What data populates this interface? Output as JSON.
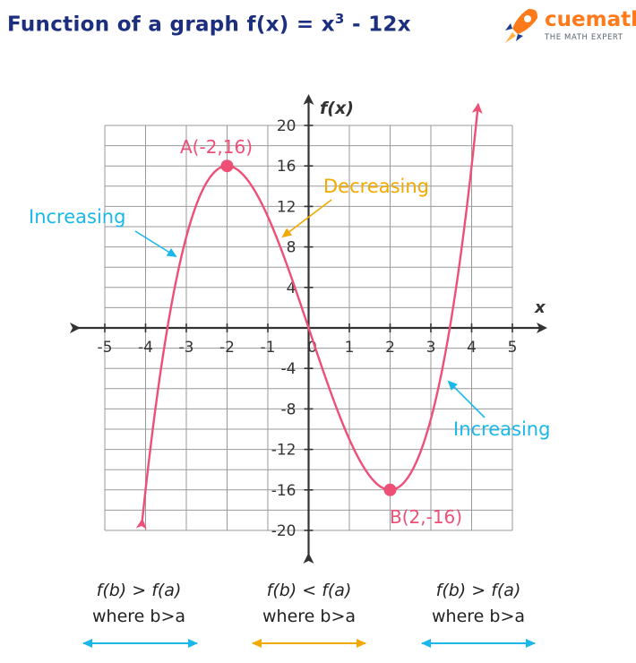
{
  "title": {
    "prefix": "Function of a graph f(x) =  x",
    "sup": "3",
    "suffix": " - 12x"
  },
  "logo": {
    "brand": "cuemath",
    "tagline": "THE MATH EXPERT"
  },
  "chart_data": {
    "type": "line",
    "function": "x^3 - 12x",
    "xlabel": "x",
    "ylabel": "f(x)",
    "xlim": [
      -5,
      5
    ],
    "ylim": [
      -20,
      20
    ],
    "x_ticks": [
      -5,
      -4,
      -3,
      -2,
      -1,
      0,
      1,
      2,
      3,
      4,
      5
    ],
    "y_ticks": [
      -20,
      -16,
      -12,
      -8,
      -4,
      0,
      4,
      8,
      12,
      16,
      20
    ],
    "x_tick_labels": [
      "-5",
      "-4",
      "-3",
      "-2",
      "-1",
      "0",
      "1",
      "2",
      "3",
      "4",
      "5"
    ],
    "y_tick_labels": [
      "-20",
      "-16",
      "-12",
      "-8",
      "-4",
      "0",
      "4",
      "8",
      "12",
      "16",
      "20"
    ],
    "grid": true,
    "curve_domain": [
      -4.08,
      4.16
    ],
    "points": [
      {
        "label": "A(-2,16)",
        "x": -2,
        "y": 16
      },
      {
        "label": "B(2,-16)",
        "x": 2,
        "y": -16
      }
    ],
    "annotations": [
      {
        "text": "Increasing",
        "color": "#1ab8ea"
      },
      {
        "text": "Decreasing",
        "color": "#f2a900"
      },
      {
        "text": "Increasing",
        "color": "#1ab8ea"
      }
    ],
    "colors": {
      "curve": "#ee4f76",
      "grid": "#9a9a9a",
      "axis": "#333333",
      "increasing": "#1ab8ea",
      "decreasing": "#f2a900"
    }
  },
  "captions": [
    {
      "line1": "f(b) > f(a)",
      "line2": "where b>a",
      "color": "#1ab8ea"
    },
    {
      "line1": "f(b) < f(a)",
      "line2": "where b>a",
      "color": "#f2a900"
    },
    {
      "line1": "f(b) > f(a)",
      "line2": "where b>a",
      "color": "#1ab8ea"
    }
  ]
}
